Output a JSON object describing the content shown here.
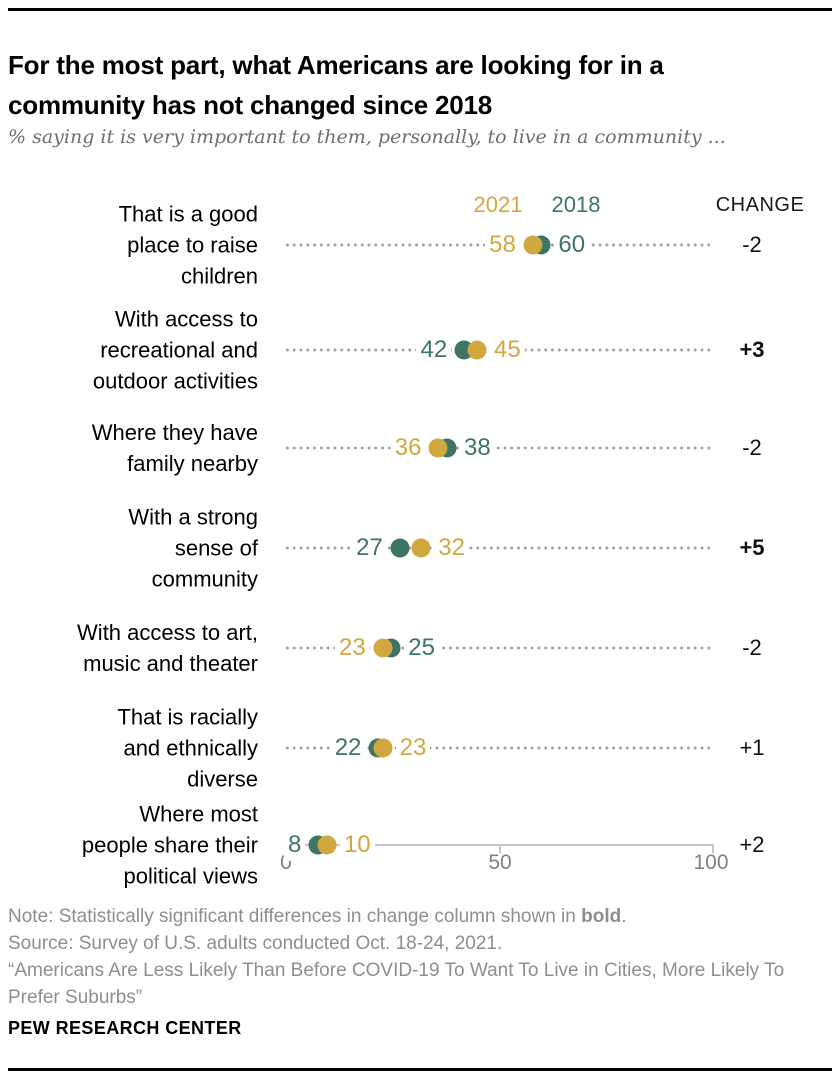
{
  "header": {
    "title": "For the most part, what Americans are looking for in a\ncommunity has not changed since 2018",
    "subtitle": "% saying it is very important to them, personally, to live in a community ..."
  },
  "legend": {
    "label_2021": "2021",
    "label_2018": "2018",
    "change_header": "CHANGE"
  },
  "colors": {
    "gold_2021": "#D1A73F",
    "green_2018": "#3E7565",
    "leader_dots": "#9F9F9F",
    "axis_line": "#C6C6C6",
    "axis_text": "#818181",
    "footer_text": "#8E8E8E"
  },
  "chart_data": {
    "type": "scatter",
    "subtype": "paired-dot-plot",
    "title": "For the most part, what Americans are looking for in a community has not changed since 2018",
    "subtitle": "% saying it is very important to them, personally, to live in a community ...",
    "xlim": [
      0,
      100
    ],
    "x_ticks": [
      0,
      50,
      100
    ],
    "grid": false,
    "legend_position": "top",
    "categories": [
      "That is a good\nplace to raise\nchildren",
      "With access to\nrecreational and\noutdoor activities",
      "Where they have\nfamily nearby",
      "With a strong\nsense of\ncommunity",
      "With access to art,\nmusic and theater",
      "That is racially\nand ethnically\ndiverse",
      "Where most\npeople share their\npolitical views"
    ],
    "series": [
      {
        "name": "2021",
        "color": "#D1A73F",
        "values": [
          58,
          45,
          36,
          32,
          23,
          23,
          10
        ]
      },
      {
        "name": "2018",
        "color": "#3E7565",
        "values": [
          60,
          42,
          38,
          27,
          25,
          22,
          8
        ]
      }
    ],
    "change": [
      {
        "label": "-2",
        "bold": false
      },
      {
        "label": "+3",
        "bold": true
      },
      {
        "label": "-2",
        "bold": false
      },
      {
        "label": "+5",
        "bold": true
      },
      {
        "label": "-2",
        "bold": false
      },
      {
        "label": "+1",
        "bold": false
      },
      {
        "label": "+2",
        "bold": false
      }
    ]
  },
  "axis": {
    "tick_labels": [
      "0",
      "50",
      "100"
    ]
  },
  "footer": {
    "note_prefix": "Note: Statistically significant differences in change column shown in ",
    "note_bold": "bold",
    "note_suffix": ".",
    "source": "Source: Survey of U.S. adults conducted Oct. 18-24, 2021.",
    "quote": "“Americans Are Less Likely Than Before COVID-19 To Want To Live in Cities, More Likely To\nPrefer Suburbs”",
    "brand": "PEW RESEARCH CENTER"
  }
}
